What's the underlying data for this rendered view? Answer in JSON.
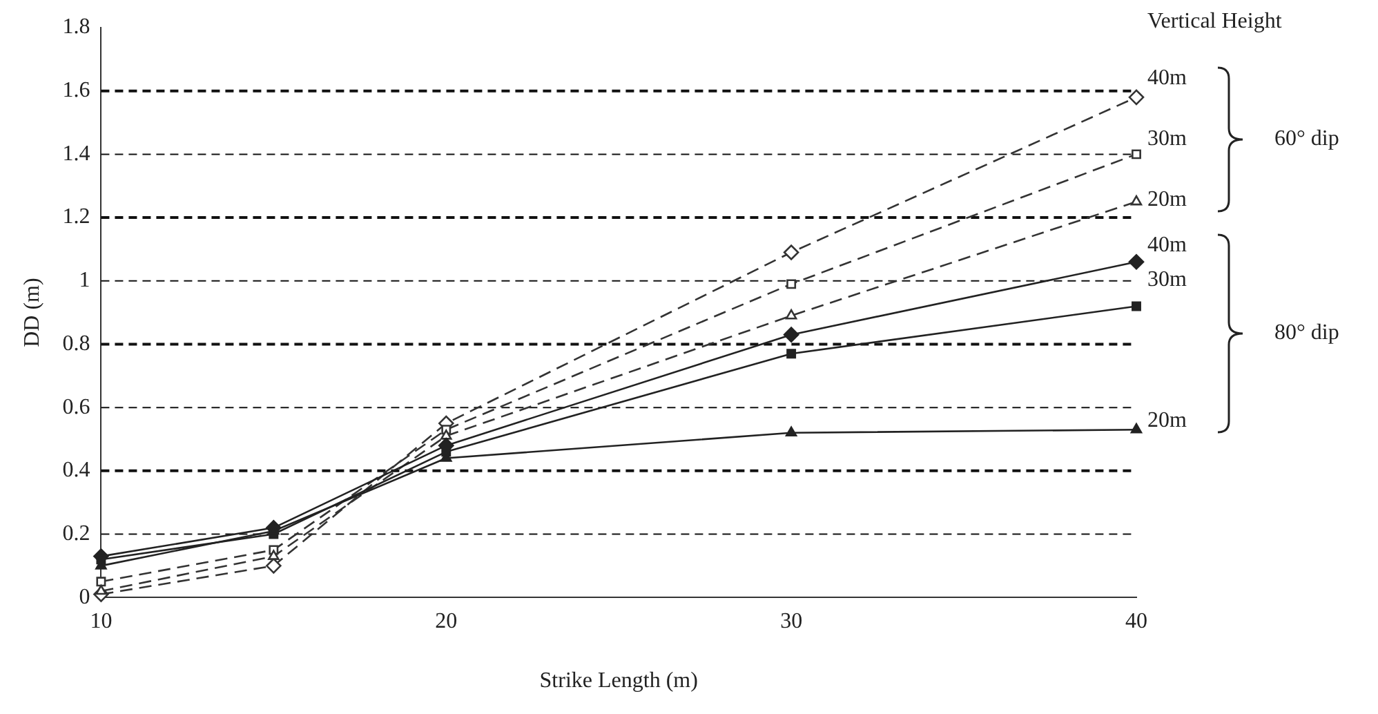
{
  "chart_data": {
    "type": "line",
    "xlabel": "Strike Length (m)",
    "ylabel": "DD (m)",
    "legend_title": "Vertical Height",
    "x": [
      10,
      15,
      20,
      30,
      40
    ],
    "xlim": [
      10,
      40
    ],
    "xticks": [
      10,
      20,
      30,
      40
    ],
    "ylim": [
      0,
      1.8
    ],
    "yticks": [
      0,
      0.2,
      0.4,
      0.6,
      0.8,
      1,
      1.2,
      1.4,
      1.6,
      1.8
    ],
    "grid": "y",
    "legend": "right",
    "series": [
      {
        "name": "40m",
        "color": "#333333",
        "marker": "diamond",
        "line_style": "dashed",
        "values": [
          0.01,
          0.1,
          0.55,
          1.09,
          1.58
        ]
      },
      {
        "name": "30m",
        "color": "#333333",
        "marker": "square",
        "line_style": "dashed",
        "values": [
          0.05,
          0.15,
          0.53,
          0.99,
          1.4
        ]
      },
      {
        "name": "20m",
        "color": "#333333",
        "marker": "triangle",
        "line_style": "dashed",
        "values": [
          0.02,
          0.13,
          0.51,
          0.89,
          1.25
        ]
      },
      {
        "name": "40m",
        "color": "#222222",
        "marker": "diamond",
        "line_style": "solid",
        "values": [
          0.13,
          0.22,
          0.48,
          0.83,
          1.06
        ]
      },
      {
        "name": "30m",
        "color": "#222222",
        "marker": "square",
        "line_style": "solid",
        "values": [
          0.12,
          0.2,
          0.46,
          0.77,
          0.92
        ]
      },
      {
        "name": "20m",
        "color": "#222222",
        "marker": "triangle",
        "line_style": "solid",
        "values": [
          0.1,
          0.21,
          0.44,
          0.52,
          0.53
        ]
      }
    ],
    "annotations": [
      "60° dip",
      "80° dip"
    ]
  }
}
